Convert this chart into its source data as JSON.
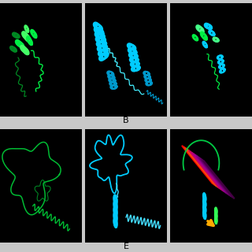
{
  "bg_color": "#000000",
  "outer_bg": "#d0d0d0",
  "white_border": "#ffffff",
  "label_B": "B",
  "label_E": "E",
  "label_fontsize": 8,
  "green": "#00ff44",
  "cyan": "#00ddff",
  "magenta": "#cc0055",
  "orange": "#ffaa00",
  "yellow_green": "#88ff00"
}
